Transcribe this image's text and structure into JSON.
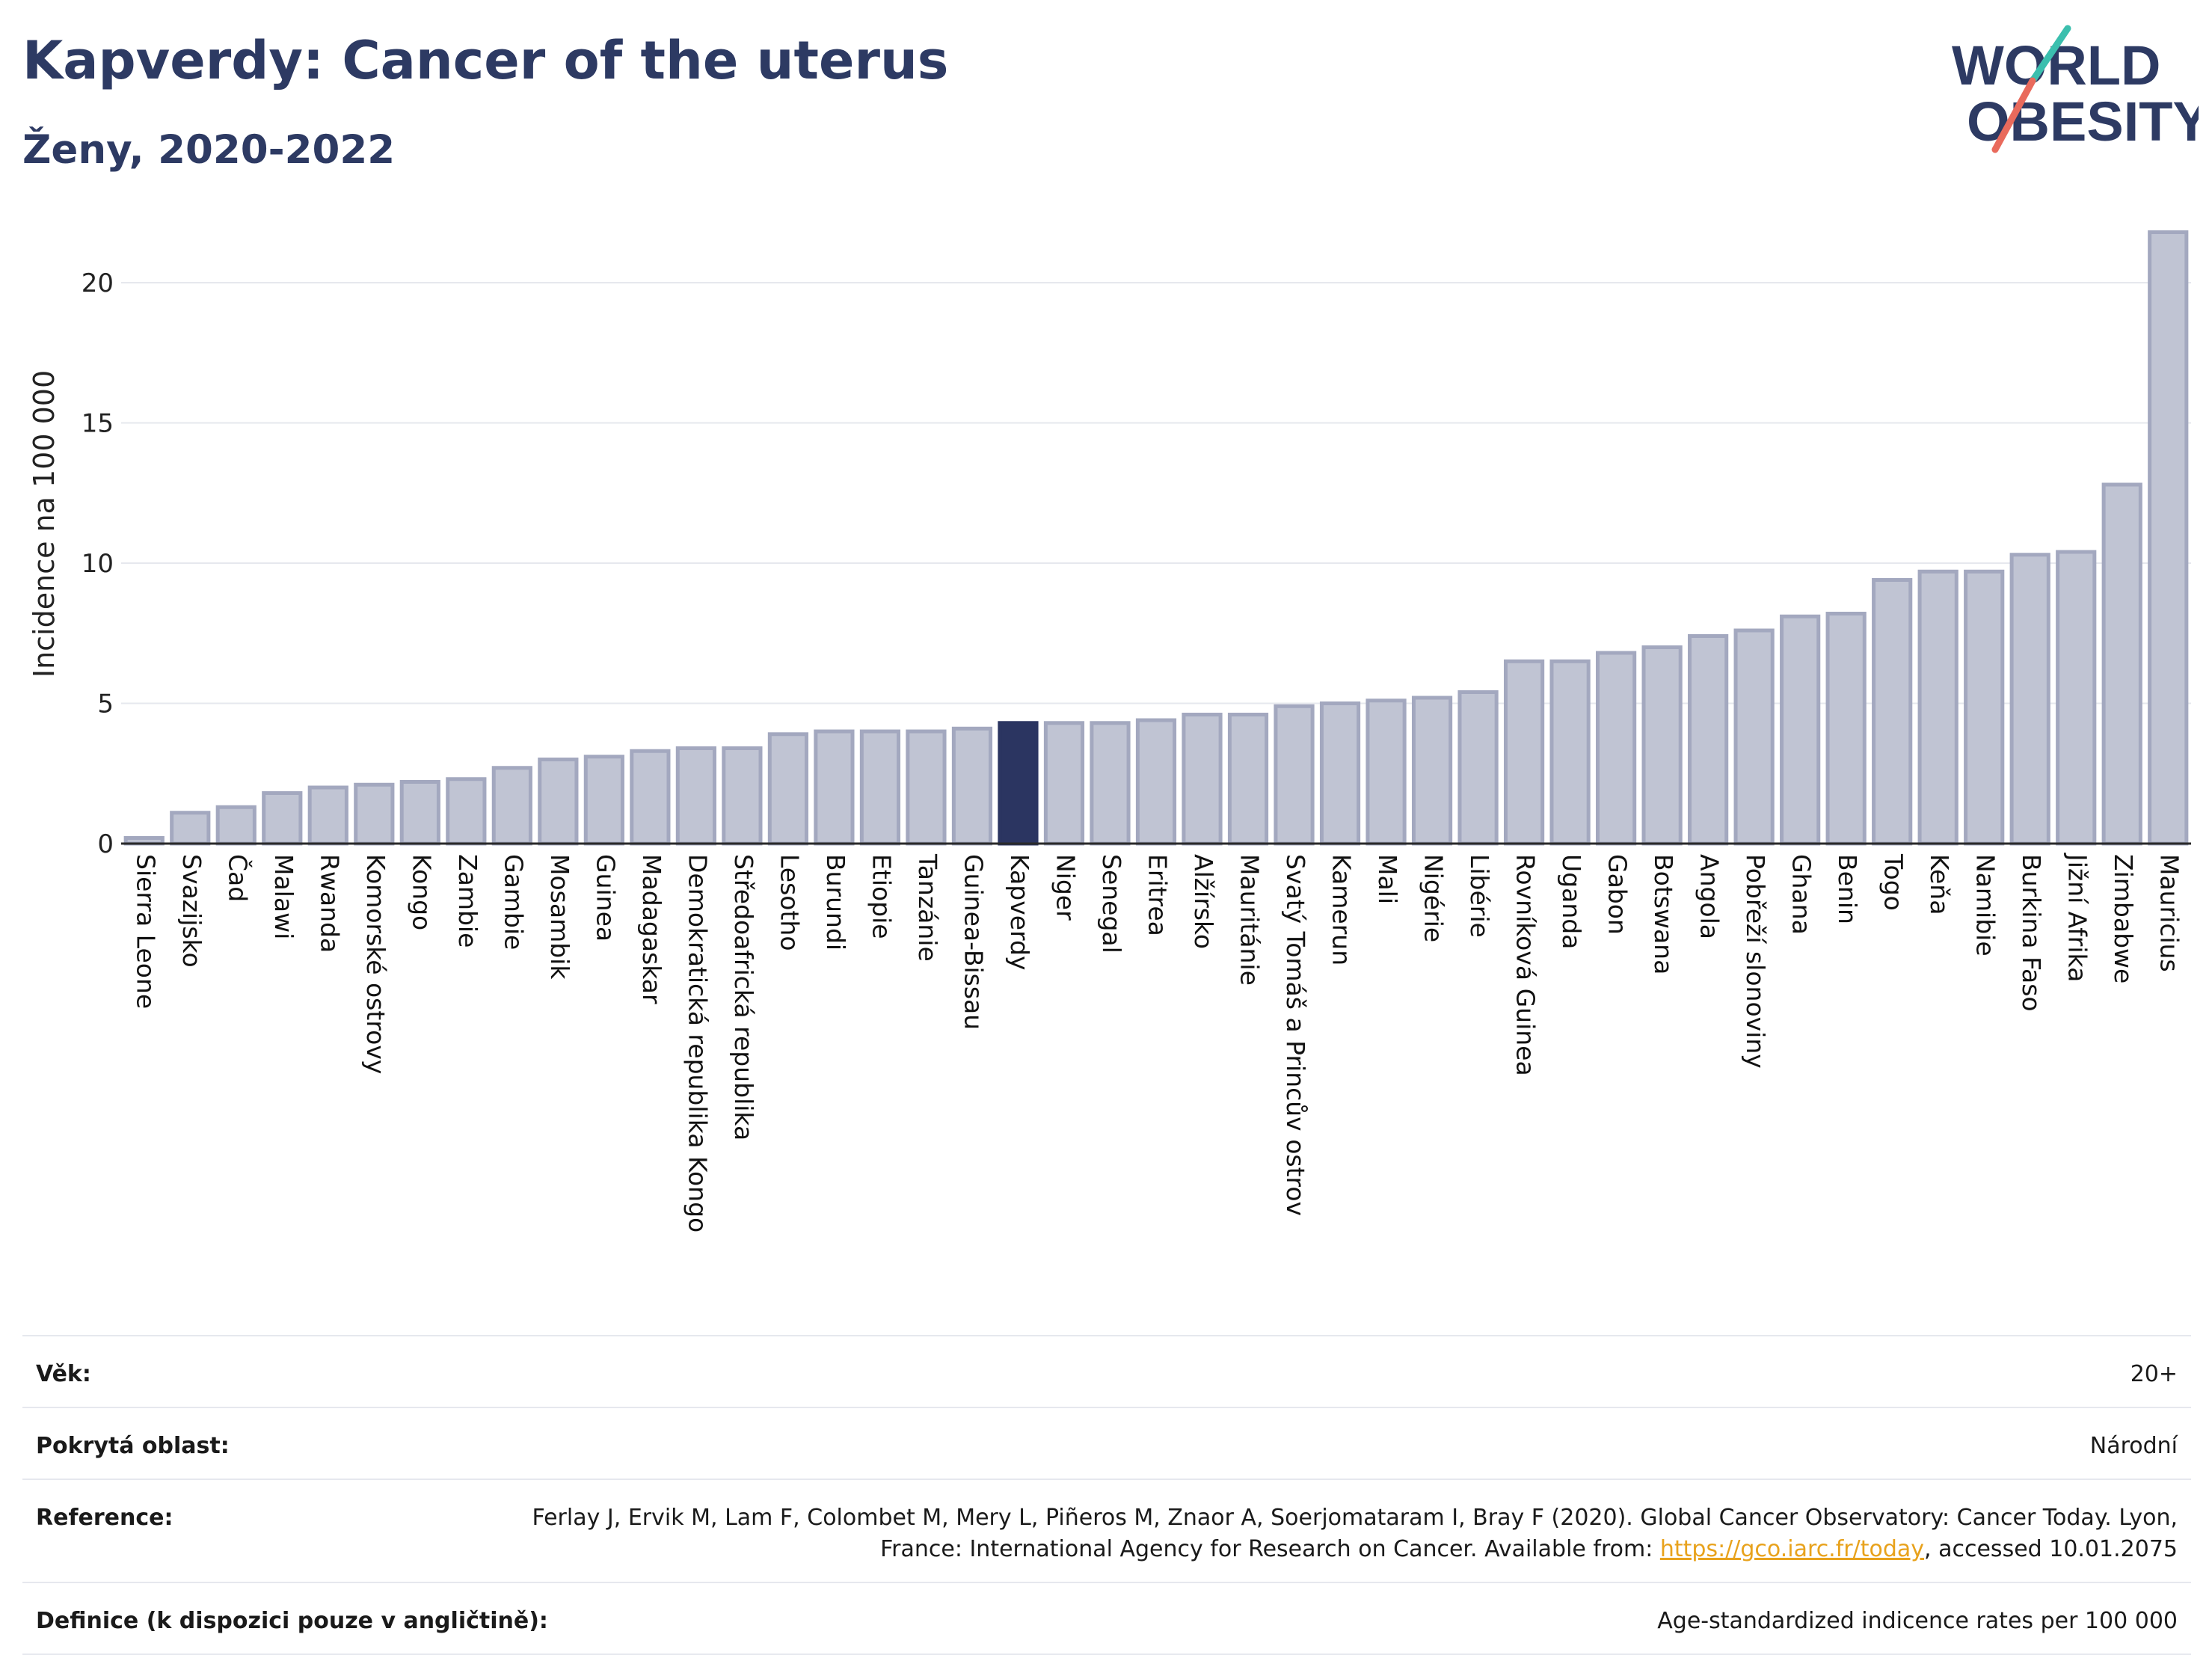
{
  "title": "Kapverdy: Cancer of the uterus",
  "subtitle": "Ženy, 2020-2022",
  "logo": {
    "line1": "WORLD",
    "line2": "OBESITY"
  },
  "colors": {
    "highlight": "#2b3561",
    "bar_fill": "#c0c4d3",
    "bar_stroke": "#a3a8bf",
    "title": "#2d3a63",
    "link": "#e8a21c"
  },
  "chart_data": {
    "type": "bar",
    "ylabel": "Incidence na 100 000",
    "ylim": [
      0,
      22.5
    ],
    "yticks": [
      0,
      5,
      10,
      15,
      20
    ],
    "grid": true,
    "highlight": "Kapverdy",
    "categories": [
      "Sierra Leone",
      "Svazijsko",
      "Čad",
      "Malawi",
      "Rwanda",
      "Komorské ostrovy",
      "Kongo",
      "Zambie",
      "Gambie",
      "Mosambik",
      "Guinea",
      "Madagaskar",
      "Demokratická republika Kongo",
      "Středoafrická republika",
      "Lesotho",
      "Burundi",
      "Etiopie",
      "Tanzánie",
      "Guinea-Bissau",
      "Kapverdy",
      "Niger",
      "Senegal",
      "Eritrea",
      "Alžírsko",
      "Mauritánie",
      "Svatý Tomáš a Princův ostrov",
      "Kamerun",
      "Mali",
      "Nigérie",
      "Libérie",
      "Rovníková Guinea",
      "Uganda",
      "Gabon",
      "Botswana",
      "Angola",
      "Pobřeží slonoviny",
      "Ghana",
      "Benin",
      "Togo",
      "Keňa",
      "Namibie",
      "Burkina Faso",
      "Jižní Afrika",
      "Zimbabwe",
      "Mauricius"
    ],
    "values": [
      0.2,
      1.1,
      1.3,
      1.8,
      2.0,
      2.1,
      2.2,
      2.3,
      2.7,
      3.0,
      3.1,
      3.3,
      3.4,
      3.4,
      3.9,
      4.0,
      4.0,
      4.0,
      4.1,
      4.3,
      4.3,
      4.3,
      4.4,
      4.6,
      4.6,
      4.9,
      5.0,
      5.1,
      5.2,
      5.4,
      6.5,
      6.5,
      6.8,
      7.0,
      7.4,
      7.6,
      8.1,
      8.2,
      9.4,
      9.7,
      9.7,
      10.3,
      10.4,
      12.8,
      21.8
    ]
  },
  "info": [
    {
      "key": "Věk:",
      "value": "20+"
    },
    {
      "key": "Pokrytá oblast:",
      "value": "Národní"
    },
    {
      "key": "Reference:",
      "value_pre": "Ferlay J, Ervik M, Lam F, Colombet M, Mery L, Piñeros M, Znaor A, Soerjomataram I, Bray F (2020). Global Cancer Observatory: Cancer Today. Lyon, France: International Agency for Research on Cancer. Available from: ",
      "link": "https://gco.iarc.fr/today",
      "value_post": ", accessed 10.01.2075"
    },
    {
      "key": "Definice (k dispozici pouze v angličtině):",
      "value": "Age-standardized indicence rates per 100 000"
    }
  ]
}
